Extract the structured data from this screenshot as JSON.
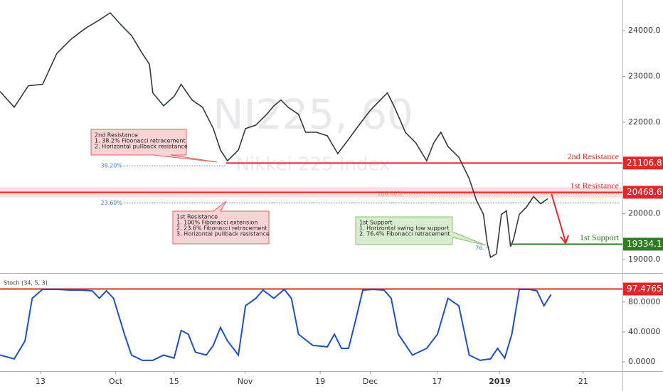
{
  "chart_data": [
    {
      "type": "line",
      "color": "#2f3b35",
      "watermark": {
        "symbol": "NI225, 60",
        "name": "Nikkei 225 Index"
      },
      "x": [
        -9.7,
        -6.3,
        -2.9,
        0.5,
        3.9,
        7.3,
        10.7,
        14.1,
        16.7,
        19.3,
        21.8,
        24.4,
        26.1,
        26.9,
        29.5,
        32.0,
        33.7,
        36.3,
        38.8,
        41.4,
        43.1,
        44.8,
        47.4,
        49.1,
        51.6,
        54.2,
        55.9,
        57.6,
        59.3,
        61.8,
        63.5,
        66.1,
        68.7,
        71.2,
        73.8,
        76.3,
        78.9,
        81.4,
        83.1,
        84.8,
        87.4,
        89.9,
        92.5,
        94.2,
        95.9,
        97.6,
        100.2,
        102.7,
        104.4,
        106.1,
        107.0,
        107.8,
        109.2,
        110.4,
        111.6,
        112.6,
        113.3,
        114.7,
        116.4,
        118.1,
        119.8,
        121.5
      ],
      "values": [
        22672,
        22328,
        22797,
        22828,
        23500,
        23813,
        24047,
        24234,
        24391,
        24125,
        23891,
        23500,
        23266,
        22641,
        22359,
        22563,
        22828,
        22484,
        22328,
        21859,
        21391,
        21156,
        21391,
        21859,
        21938,
        22172,
        22359,
        22484,
        22328,
        22172,
        21781,
        21781,
        21703,
        21313,
        21625,
        21938,
        22250,
        22484,
        22641,
        22328,
        21781,
        21547,
        21156,
        21547,
        21781,
        21469,
        21234,
        20766,
        20297,
        19984,
        19359,
        19047,
        19125,
        19984,
        20063,
        19281,
        19438,
        19984,
        20141,
        20375,
        20219,
        20328
      ],
      "xlim": [
        -9.7,
        139.4
      ],
      "xticks": [
        {
          "value": 0,
          "label": "13"
        },
        {
          "value": 18,
          "label": "Oct"
        },
        {
          "value": 32,
          "label": "15"
        },
        {
          "value": 49,
          "label": "Nov"
        },
        {
          "value": 67,
          "label": "19"
        },
        {
          "value": 79,
          "label": "Dec"
        },
        {
          "value": 95,
          "label": "17"
        },
        {
          "value": 110,
          "label": "2019"
        },
        {
          "value": 130,
          "label": "21"
        }
      ],
      "ylim": [
        18720,
        24670
      ],
      "yticks": [
        {
          "value": 19000,
          "label": "19000.0"
        },
        {
          "value": 20000,
          "label": "20000.0"
        },
        {
          "value": 22000,
          "label": "22000.0"
        },
        {
          "value": 23000,
          "label": "23000.0"
        },
        {
          "value": 24000,
          "label": "24000.0"
        }
      ],
      "levels": [
        {
          "label": "2nd Resistance",
          "value": 21106.8,
          "color": "#e0282a"
        },
        {
          "label": "1st Resistance",
          "value": 20468.6,
          "color": "#e0282a"
        },
        {
          "label": "1st Support",
          "value": 19334.1,
          "color": "#2e7d1f"
        }
      ],
      "fib_levels": [
        {
          "label": "38.20%",
          "value": 21047,
          "color": "#4a78c2"
        },
        {
          "label": "23.60%",
          "value": 20234,
          "color": "#4a78c2"
        },
        {
          "label": "100.00%",
          "value": 20437,
          "color": "#e8922c"
        },
        {
          "label": "76.",
          "value": 19250,
          "color": "#4a78c2"
        }
      ],
      "callouts": [
        {
          "title": "2nd Resistance",
          "lines": [
            "1. 38.2% Fibonacci retracement",
            "2. Horizontal pullback resistance"
          ]
        },
        {
          "title": "1st Resistance",
          "lines": [
            "1. 100% Fibonacci extension",
            "2. 23.6% Fibonacci retracement",
            "3. Horizontal pullback resistance"
          ]
        },
        {
          "title": "1st Support",
          "lines": [
            "1. Horizontal swing low support",
            "2. 76.4% Fibonacci retracement"
          ]
        }
      ]
    },
    {
      "type": "line",
      "title": "Stoch (34, 5, 3)",
      "color": "#1f4fc4",
      "x": [
        -9.7,
        -6.3,
        -3.7,
        -2.0,
        0.5,
        3.9,
        7.3,
        9.9,
        12.4,
        14.1,
        15.8,
        17.5,
        20.1,
        21.8,
        24.4,
        26.9,
        29.5,
        32.0,
        33.7,
        35.4,
        37.1,
        39.7,
        41.4,
        43.1,
        44.8,
        47.4,
        49.1,
        51.6,
        53.3,
        55.9,
        58.4,
        60.1,
        61.8,
        65.2,
        68.7,
        70.4,
        72.1,
        73.8,
        75.5,
        77.2,
        79.7,
        82.3,
        84.0,
        85.7,
        89.1,
        92.5,
        95.1,
        97.6,
        100.2,
        102.7,
        105.3,
        107.8,
        109.5,
        111.2,
        112.9,
        114.7,
        117.2,
        118.9,
        120.6,
        122.3
      ],
      "values": [
        9,
        4,
        28,
        85,
        97,
        97,
        96,
        96,
        95,
        85,
        95,
        85,
        37,
        9,
        2,
        2,
        9,
        5,
        42,
        37,
        13,
        9,
        22,
        46,
        28,
        9,
        75,
        85,
        96,
        85,
        97,
        85,
        37,
        22,
        20,
        37,
        18,
        18,
        56,
        96,
        97,
        96,
        85,
        37,
        9,
        18,
        37,
        85,
        75,
        9,
        2,
        4,
        18,
        5,
        37,
        97,
        97,
        95,
        75,
        90
      ],
      "xlim": [
        -9.7,
        139.4
      ],
      "ylim": [
        -10.5,
        117
      ],
      "yticks": [
        {
          "value": 0,
          "label": "0.0000"
        },
        {
          "value": 40,
          "label": "40.0000"
        },
        {
          "value": 80,
          "label": "80.0000"
        }
      ],
      "level": {
        "value": 97.4765,
        "color": "#e0282a"
      }
    }
  ]
}
